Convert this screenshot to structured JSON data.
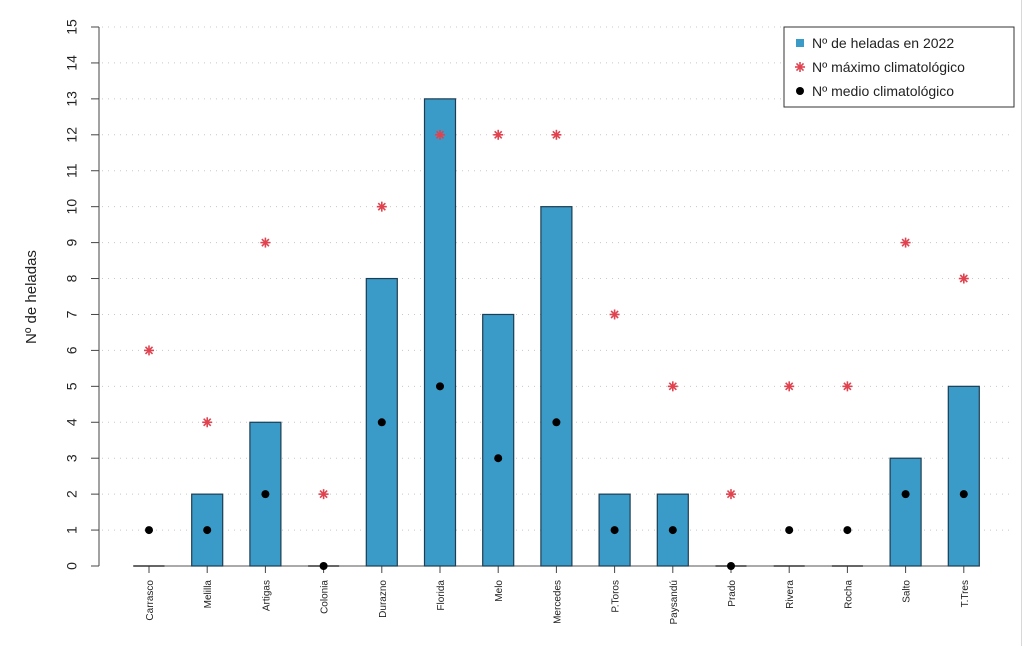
{
  "chart_data": {
    "type": "bar",
    "title": "",
    "xlabel": "",
    "ylabel": "Nº de heladas",
    "ylim": [
      0,
      15
    ],
    "yticks": [
      0,
      1,
      2,
      3,
      4,
      5,
      6,
      7,
      8,
      9,
      10,
      11,
      12,
      13,
      14,
      15
    ],
    "grid": true,
    "legend_position": "top-right",
    "categories": [
      "Carrasco",
      "Melilla",
      "Artigas",
      "Colonia",
      "Durazno",
      "Florida",
      "Melo",
      "Mercedes",
      "P.Toros",
      "Paysandú",
      "Prado",
      "Rivera",
      "Rocha",
      "Salto",
      "T.Tres"
    ],
    "series": [
      {
        "name": "Nº de heladas en 2022",
        "kind": "bar",
        "color": "#3b9bc8",
        "values": [
          0,
          2,
          4,
          0,
          8,
          13,
          7,
          10,
          2,
          2,
          0,
          0,
          0,
          3,
          5
        ]
      },
      {
        "name": "Nº máximo climatológico",
        "kind": "asterisk",
        "color": "#e0434f",
        "values": [
          6,
          4,
          9,
          2,
          10,
          12,
          12,
          12,
          7,
          5,
          2,
          5,
          5,
          9,
          8
        ]
      },
      {
        "name": "Nº medio climatológico",
        "kind": "dot",
        "color": "#000000",
        "values": [
          1,
          1,
          2,
          0,
          4,
          5,
          3,
          4,
          1,
          1,
          0,
          1,
          1,
          2,
          2
        ]
      }
    ]
  }
}
